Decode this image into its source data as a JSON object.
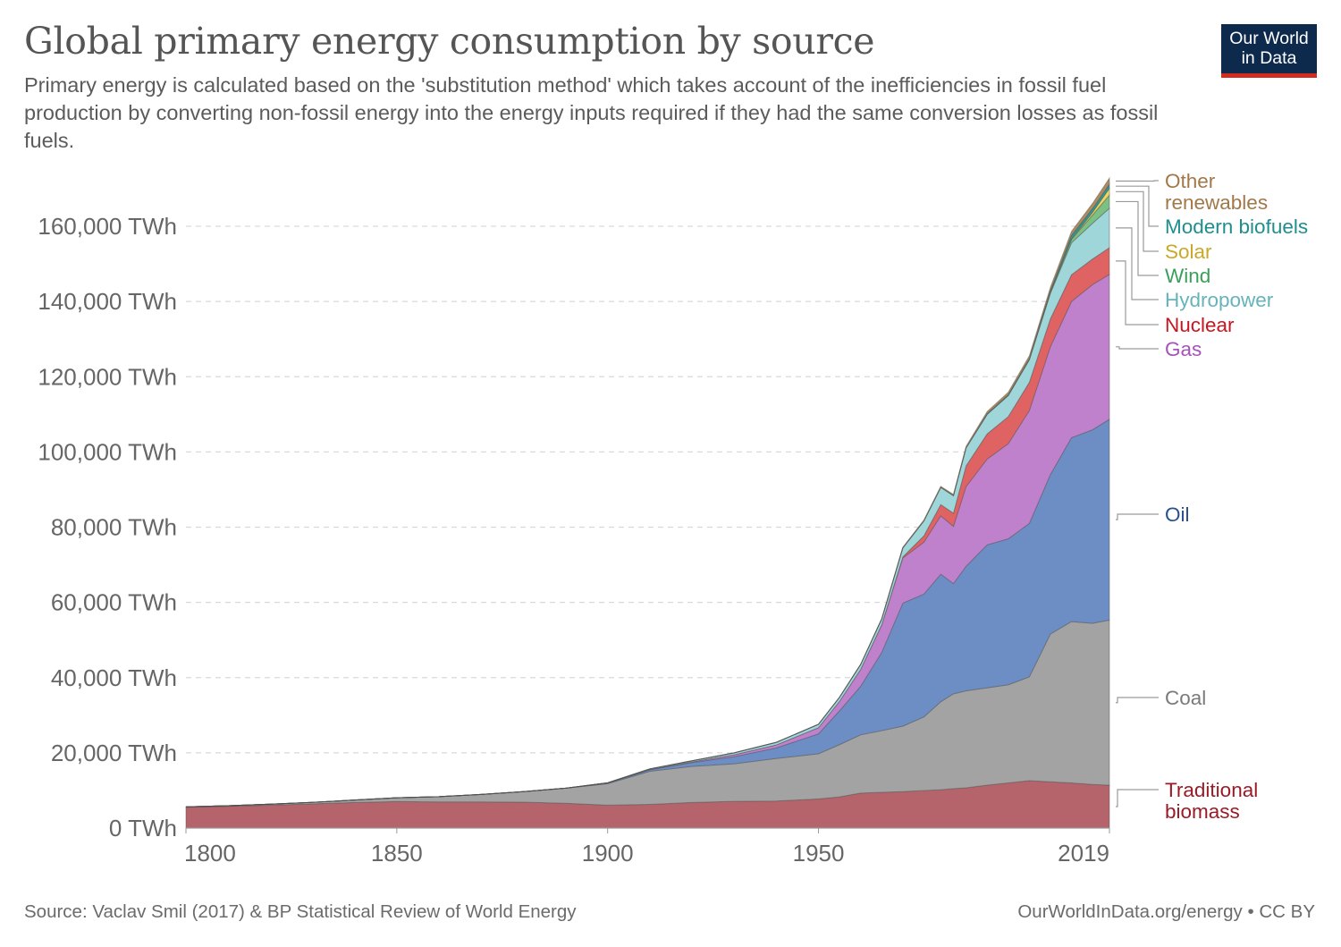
{
  "header": {
    "title": "Global primary energy consumption by source",
    "subtitle": "Primary energy is calculated based on the 'substitution method' which takes account of the inefficiencies in fossil fuel production by converting non-fossil energy into the energy inputs required if they had the same conversion losses as fossil fuels.",
    "logo_line1": "Our World",
    "logo_line2": "in Data"
  },
  "footer": {
    "source": "Source: Vaclav Smil (2017) & BP Statistical Review of World Energy",
    "credit": "OurWorldInData.org/energy • CC BY"
  },
  "chart_data": {
    "type": "area",
    "stacked": true,
    "title": "Global primary energy consumption by source",
    "unit": "TWh",
    "xlim": [
      1800,
      2019
    ],
    "ylim": [
      0,
      170000
    ],
    "x_ticks": [
      1800,
      1850,
      1900,
      1950,
      2019
    ],
    "x_tick_labels": [
      "1800",
      "1850",
      "1900",
      "1950",
      "2019"
    ],
    "y_ticks": [
      0,
      20000,
      40000,
      60000,
      80000,
      100000,
      120000,
      140000,
      160000
    ],
    "y_tick_labels": [
      "0 TWh",
      "20,000 TWh",
      "40,000 TWh",
      "60,000 TWh",
      "80,000 TWh",
      "100,000 TWh",
      "120,000 TWh",
      "140,000 TWh",
      "160,000 TWh"
    ],
    "grid": "horizontal dashed",
    "legend": "right, labels at series ends",
    "x": [
      1800,
      1810,
      1820,
      1830,
      1840,
      1850,
      1860,
      1870,
      1880,
      1890,
      1900,
      1910,
      1920,
      1930,
      1940,
      1950,
      1955,
      1960,
      1965,
      1970,
      1975,
      1979,
      1982,
      1985,
      1990,
      1995,
      2000,
      2005,
      2010,
      2015,
      2019
    ],
    "series": [
      {
        "name": "Traditional biomass",
        "color": "#b5646c",
        "label_color": "#9a1b26",
        "values": [
          5556,
          5800,
          6100,
          6450,
          6800,
          7050,
          6950,
          6950,
          6900,
          6600,
          6100,
          6300,
          6800,
          7100,
          7200,
          7750,
          8300,
          9300,
          9500,
          9700,
          10000,
          10200,
          10500,
          10700,
          11400,
          12000,
          12600,
          12300,
          12000,
          11600,
          11400
        ]
      },
      {
        "name": "Coal",
        "color": "#a3a3a3",
        "label_color": "#7a7a7a",
        "values": [
          97,
          150,
          250,
          400,
          650,
          1000,
          1400,
          2000,
          2800,
          4000,
          5700,
          8800,
          9600,
          10000,
          11300,
          12000,
          13900,
          15500,
          16400,
          17400,
          19550,
          23400,
          25200,
          25800,
          25900,
          26100,
          27600,
          39300,
          42900,
          42850,
          43900
        ]
      },
      {
        "name": "Oil",
        "color": "#6d8ec4",
        "label_color": "#2a4f95",
        "values": [
          0,
          0,
          0,
          0,
          0,
          0,
          0,
          0,
          0,
          0,
          200,
          400,
          1000,
          1900,
          2800,
          5300,
          9000,
          12900,
          20800,
          32700,
          32650,
          33900,
          29300,
          33100,
          38000,
          38800,
          40800,
          42400,
          48900,
          51450,
          53400
        ]
      },
      {
        "name": "Gas",
        "color": "#c081cc",
        "label_color": "#a652ba",
        "values": [
          0,
          0,
          0,
          0,
          0,
          0,
          0,
          0,
          0,
          0,
          0,
          60,
          200,
          500,
          800,
          1640,
          2500,
          4500,
          7300,
          12000,
          13800,
          15500,
          15200,
          21200,
          22800,
          25300,
          30000,
          34000,
          36200,
          38600,
          38500
        ]
      },
      {
        "name": "Nuclear",
        "color": "#e06363",
        "label_color": "#c8151f",
        "values": [
          0,
          0,
          0,
          0,
          0,
          0,
          0,
          0,
          0,
          0,
          0,
          0,
          0,
          0,
          0,
          0,
          0,
          0,
          100,
          300,
          1700,
          3000,
          3500,
          5500,
          6700,
          7200,
          7500,
          7400,
          7100,
          6800,
          7100
        ]
      },
      {
        "name": "Hydropower",
        "color": "#9fd6da",
        "label_color": "#66b3bc",
        "values": [
          0,
          0,
          0,
          0,
          0,
          0,
          0,
          0,
          0,
          0,
          50,
          150,
          300,
          500,
          700,
          900,
          1100,
          1300,
          1500,
          2400,
          4000,
          4600,
          4700,
          4800,
          5200,
          5600,
          6000,
          6800,
          8500,
          9500,
          10500
        ]
      },
      {
        "name": "Wind",
        "color": "#7cc183",
        "label_color": "#3a9f5c",
        "values": [
          0,
          0,
          0,
          0,
          0,
          0,
          0,
          0,
          0,
          0,
          0,
          0,
          0,
          0,
          0,
          0,
          0,
          0,
          0,
          0,
          0,
          0,
          0,
          0,
          10,
          30,
          90,
          300,
          900,
          2200,
          3500
        ]
      },
      {
        "name": "Solar",
        "color": "#f0d560",
        "label_color": "#c9a927",
        "values": [
          0,
          0,
          0,
          0,
          0,
          0,
          0,
          0,
          0,
          0,
          0,
          0,
          0,
          0,
          0,
          0,
          0,
          0,
          0,
          0,
          0,
          0,
          0,
          0,
          0,
          0,
          3,
          10,
          90,
          700,
          1800
        ]
      },
      {
        "name": "Modern biofuels",
        "color": "#2a9a9a",
        "label_color": "#1e8e8e",
        "values": [
          0,
          0,
          0,
          0,
          0,
          0,
          0,
          0,
          0,
          0,
          0,
          0,
          0,
          0,
          0,
          0,
          0,
          0,
          0,
          0,
          0,
          0,
          0,
          0,
          120,
          150,
          170,
          350,
          950,
          1000,
          1100
        ]
      },
      {
        "name": "Other renewables",
        "color": "#b08c5f",
        "label_color": "#a2784a",
        "values": [
          0,
          0,
          0,
          0,
          0,
          0,
          0,
          0,
          0,
          0,
          0,
          0,
          0,
          0,
          0,
          0,
          0,
          0,
          100,
          150,
          200,
          250,
          300,
          400,
          600,
          700,
          800,
          900,
          1100,
          1400,
          1600
        ]
      }
    ]
  }
}
